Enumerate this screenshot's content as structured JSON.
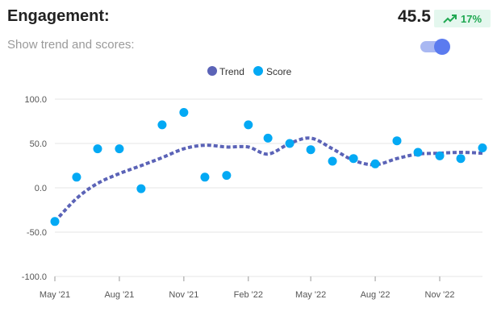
{
  "header": {
    "title": "Engagement:",
    "score": "45.5",
    "change": "17%"
  },
  "toggle": {
    "label": "Show trend and scores:",
    "on": true
  },
  "colors": {
    "trend": "#5b63b7",
    "score": "#03a9f4",
    "badge_bg": "#e4f7ee",
    "badge_fg": "#1fa851"
  },
  "chart_data": {
    "type": "line",
    "legend": [
      "Trend",
      "Score"
    ],
    "legend_placement": "top",
    "grid": true,
    "ylim": [
      -100,
      100
    ],
    "yticks": [
      "100.0",
      "50.0",
      "0.0",
      "-50.0",
      "-100.0"
    ],
    "yticks_values": [
      100,
      50,
      0,
      -50,
      -100
    ],
    "xticks": [
      "May '21",
      "Aug '21",
      "Nov '21",
      "Feb '22",
      "May '22",
      "Aug '22",
      "Nov '22"
    ],
    "xticks_dates": [
      "2021-05-01",
      "2021-08-01",
      "2021-11-01",
      "2022-02-01",
      "2022-05-01",
      "2022-08-01",
      "2022-11-01"
    ],
    "series": [
      {
        "name": "Score",
        "style": "points",
        "x": [
          "2021-05-01",
          "2021-06-01",
          "2021-07-01",
          "2021-08-01",
          "2021-09-01",
          "2021-10-01",
          "2021-11-01",
          "2021-12-01",
          "2022-01-01",
          "2022-02-01",
          "2022-03-01",
          "2022-04-01",
          "2022-05-01",
          "2022-06-01",
          "2022-07-01",
          "2022-08-01",
          "2022-09-01",
          "2022-10-01",
          "2022-11-01",
          "2022-12-01",
          "2023-01-01"
        ],
        "values": [
          -38,
          12,
          44,
          44,
          -1,
          71,
          85,
          12,
          14,
          71,
          56,
          50,
          43,
          30,
          33,
          27,
          53,
          40,
          36,
          33,
          45
        ]
      },
      {
        "name": "Trend",
        "style": "dashed-line",
        "x": [
          "2021-05-01",
          "2021-06-01",
          "2021-07-01",
          "2021-08-01",
          "2021-09-01",
          "2021-10-01",
          "2021-11-01",
          "2021-12-01",
          "2022-01-01",
          "2022-02-01",
          "2022-03-01",
          "2022-04-01",
          "2022-05-01",
          "2022-06-01",
          "2022-07-01",
          "2022-08-01",
          "2022-09-01",
          "2022-10-01",
          "2022-11-01",
          "2022-12-01",
          "2023-01-01"
        ],
        "values": [
          -38,
          -12,
          5,
          16,
          25,
          34,
          44,
          48,
          46,
          46,
          38,
          50,
          56,
          44,
          31,
          26,
          33,
          38,
          39,
          40,
          39
        ]
      }
    ]
  }
}
